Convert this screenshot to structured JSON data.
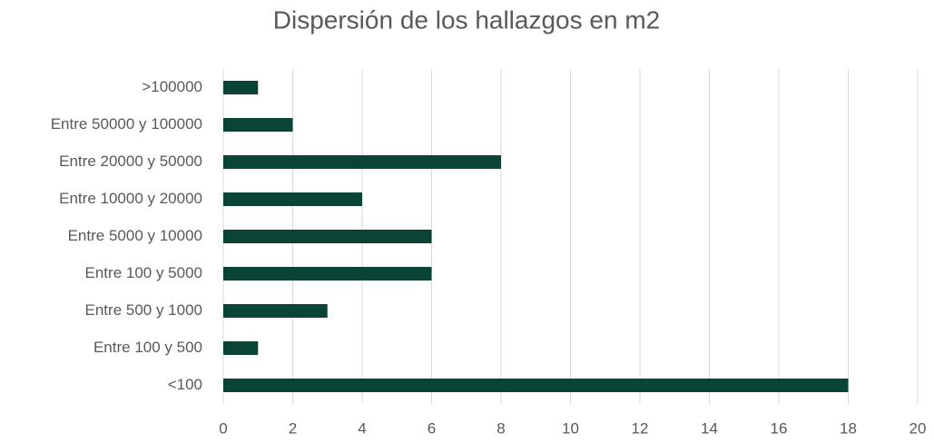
{
  "chart_data": {
    "type": "bar",
    "orientation": "horizontal",
    "title": "Dispersión de los hallazgos en m2",
    "categories": [
      "<100",
      "Entre 100 y 500",
      "Entre 500 y 1000",
      "Entre 100 y 5000",
      "Entre 5000 y 10000",
      "Entre 10000 y 20000",
      "Entre 20000 y 50000",
      "Entre 50000 y 100000",
      ">100000"
    ],
    "values": [
      18,
      1,
      3,
      6,
      6,
      4,
      8,
      2,
      1
    ],
    "color": "#0a4437",
    "xlim": [
      0,
      20
    ],
    "xticks": [
      0,
      2,
      4,
      6,
      8,
      10,
      12,
      14,
      16,
      18,
      20
    ],
    "grid": true
  }
}
